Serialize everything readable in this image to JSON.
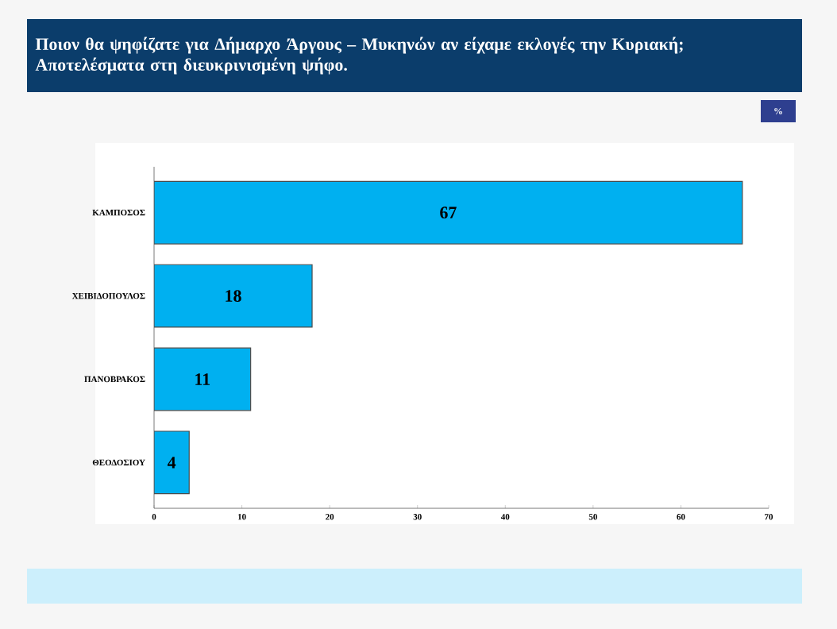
{
  "chart_data": {
    "type": "bar",
    "orientation": "horizontal",
    "title": "Ποιον θα ψηφίζατε για Δήμαρχο Άργους – Μυκηνών  αν είχαμε εκλογές την Κυριακή; Αποτελέσματα στη διευκρινισμένη ψήφο.",
    "annotations": [
      "%"
    ],
    "categories": [
      "ΚΑΜΠΟΣΟΣ",
      "ΧΕΙΒΙΔΟΠΟΥΛΟΣ",
      "ΠΑΝΟΒΡΑΚΟΣ",
      "ΘΕΟΔΟΣΙΟΥ"
    ],
    "values": [
      67,
      18,
      11,
      4
    ],
    "color": "#00b0f0",
    "xlim": [
      0,
      70
    ],
    "xticks": [
      0,
      10,
      20,
      30,
      40,
      50,
      60,
      70
    ],
    "data_labels": true
  }
}
